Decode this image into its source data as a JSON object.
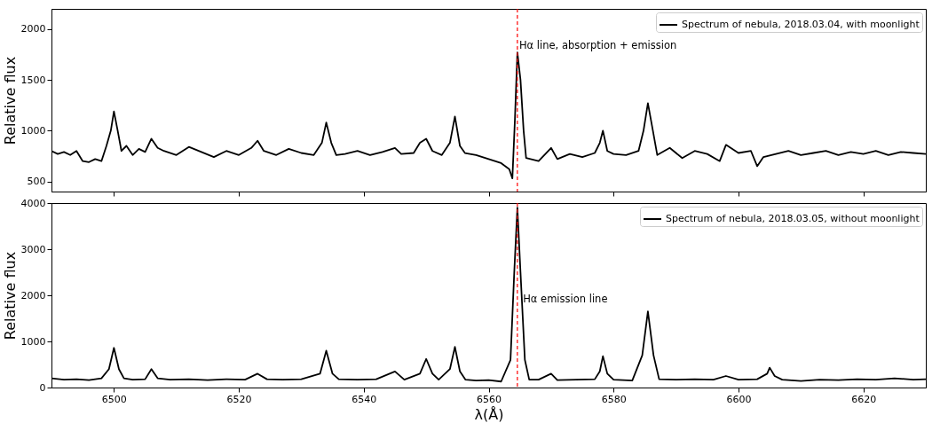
{
  "chart_data": [
    {
      "type": "line",
      "ylabel": "Relative flux",
      "xlim": [
        6490,
        6630
      ],
      "xticks": [
        6500,
        6520,
        6540,
        6560,
        6580,
        6600,
        6620
      ],
      "ylim": [
        400,
        2200
      ],
      "yticks": [
        500,
        1000,
        1500,
        2000
      ],
      "tick_labels": "y",
      "grid": false,
      "legend": "top right",
      "line_style": "solid",
      "series": [
        {
          "name": "Spectrum of nebula, 2018.03.04, with moonlight",
          "color": "#000000",
          "x": [
            6490,
            6491,
            6492,
            6493,
            6494,
            6495,
            6496,
            6497,
            6498,
            6498.8,
            6499.5,
            6500,
            6500.6,
            6501.2,
            6502,
            6503,
            6504,
            6505,
            6506,
            6507,
            6508,
            6510,
            6512,
            6514,
            6516,
            6518,
            6520,
            6522,
            6523,
            6524,
            6526,
            6528,
            6530,
            6532,
            6533.3,
            6534,
            6534.8,
            6535.6,
            6537,
            6539,
            6541,
            6543,
            6545,
            6546,
            6548,
            6549,
            6550,
            6551,
            6552.5,
            6553.8,
            6554.6,
            6555.4,
            6556.2,
            6558,
            6560,
            6562,
            6563.3,
            6563.8,
            6564.2,
            6564.6,
            6565.1,
            6565.6,
            6566,
            6568,
            6570,
            6571,
            6573,
            6575,
            6577,
            6577.8,
            6578.3,
            6579,
            6580,
            6582,
            6584,
            6584.8,
            6585.5,
            6586.3,
            6587,
            6589,
            6591,
            6593,
            6595,
            6597,
            6598,
            6600,
            6602,
            6603,
            6604,
            6606,
            6608,
            6610,
            6612,
            6614,
            6616,
            6618,
            6620,
            6622,
            6624,
            6626,
            6628,
            6630
          ],
          "values": [
            800,
            770,
            790,
            760,
            800,
            700,
            690,
            720,
            700,
            850,
            1000,
            1190,
            1000,
            800,
            850,
            760,
            820,
            790,
            920,
            830,
            800,
            760,
            840,
            790,
            740,
            800,
            760,
            830,
            900,
            800,
            760,
            820,
            780,
            760,
            880,
            1080,
            880,
            760,
            770,
            800,
            760,
            790,
            830,
            770,
            780,
            880,
            920,
            800,
            760,
            880,
            1140,
            850,
            780,
            760,
            720,
            680,
            620,
            530,
            1100,
            1770,
            1500,
            1000,
            730,
            700,
            830,
            720,
            770,
            740,
            780,
            880,
            1000,
            800,
            770,
            760,
            800,
            1000,
            1270,
            1000,
            760,
            830,
            730,
            800,
            770,
            700,
            860,
            780,
            800,
            650,
            740,
            770,
            800,
            760,
            780,
            800,
            760,
            790,
            770,
            800,
            760,
            790,
            780,
            770
          ]
        }
      ],
      "ref_lines": [
        {
          "axis": "x",
          "value": 6564.6,
          "color": "#ff0000",
          "line_style": "dashed"
        }
      ],
      "annotations": [
        {
          "text": "Hα line, absorption + emission",
          "x": 6564.9,
          "y": 1830
        }
      ]
    },
    {
      "type": "line",
      "xlabel": "λ(Å)",
      "ylabel": "Relative flux",
      "xlim": [
        6490,
        6630
      ],
      "xticks": [
        6500,
        6520,
        6540,
        6560,
        6580,
        6600,
        6620
      ],
      "ylim": [
        0,
        4000
      ],
      "yticks": [
        0,
        1000,
        2000,
        3000,
        4000
      ],
      "grid": false,
      "legend": "top right",
      "line_style": "solid",
      "series": [
        {
          "name": "Spectrum of nebula, 2018.03.05, without moonlight",
          "color": "#000000",
          "x": [
            6490,
            6492,
            6494,
            6496,
            6498,
            6499.2,
            6500,
            6500.8,
            6501.6,
            6503,
            6505,
            6506,
            6507,
            6509,
            6512,
            6515,
            6518,
            6521,
            6523,
            6524.5,
            6527,
            6530,
            6533,
            6534,
            6535,
            6536,
            6539,
            6542,
            6545,
            6546.5,
            6549,
            6550,
            6551,
            6552,
            6553.8,
            6554.6,
            6555.4,
            6556.3,
            6558,
            6560,
            6562,
            6563.5,
            6564.1,
            6564.6,
            6565.1,
            6565.8,
            6566.5,
            6568,
            6570,
            6571,
            6574,
            6577,
            6577.8,
            6578.3,
            6579,
            6580,
            6583,
            6584.6,
            6585.5,
            6586.4,
            6587.3,
            6590,
            6593,
            6596,
            6598,
            6600,
            6603,
            6604.6,
            6605,
            6605.8,
            6607,
            6610,
            6613,
            6616,
            6619,
            6622,
            6625,
            6628,
            6630
          ],
          "values": [
            200,
            170,
            180,
            160,
            200,
            400,
            860,
            400,
            200,
            170,
            180,
            400,
            200,
            170,
            180,
            160,
            180,
            170,
            300,
            180,
            170,
            180,
            300,
            800,
            300,
            180,
            170,
            180,
            350,
            170,
            300,
            620,
            300,
            170,
            400,
            880,
            350,
            170,
            150,
            160,
            130,
            600,
            2500,
            3900,
            2500,
            600,
            170,
            170,
            300,
            160,
            170,
            180,
            350,
            680,
            300,
            170,
            150,
            700,
            1650,
            700,
            180,
            170,
            180,
            170,
            250,
            170,
            180,
            300,
            430,
            250,
            170,
            140,
            170,
            160,
            180,
            170,
            200,
            170,
            180
          ]
        }
      ],
      "ref_lines": [
        {
          "axis": "x",
          "value": 6564.6,
          "color": "#ff0000",
          "line_style": "dashed"
        }
      ],
      "annotations": [
        {
          "text": "Hα emission line",
          "x": 6565.5,
          "y": 1900
        }
      ]
    }
  ]
}
